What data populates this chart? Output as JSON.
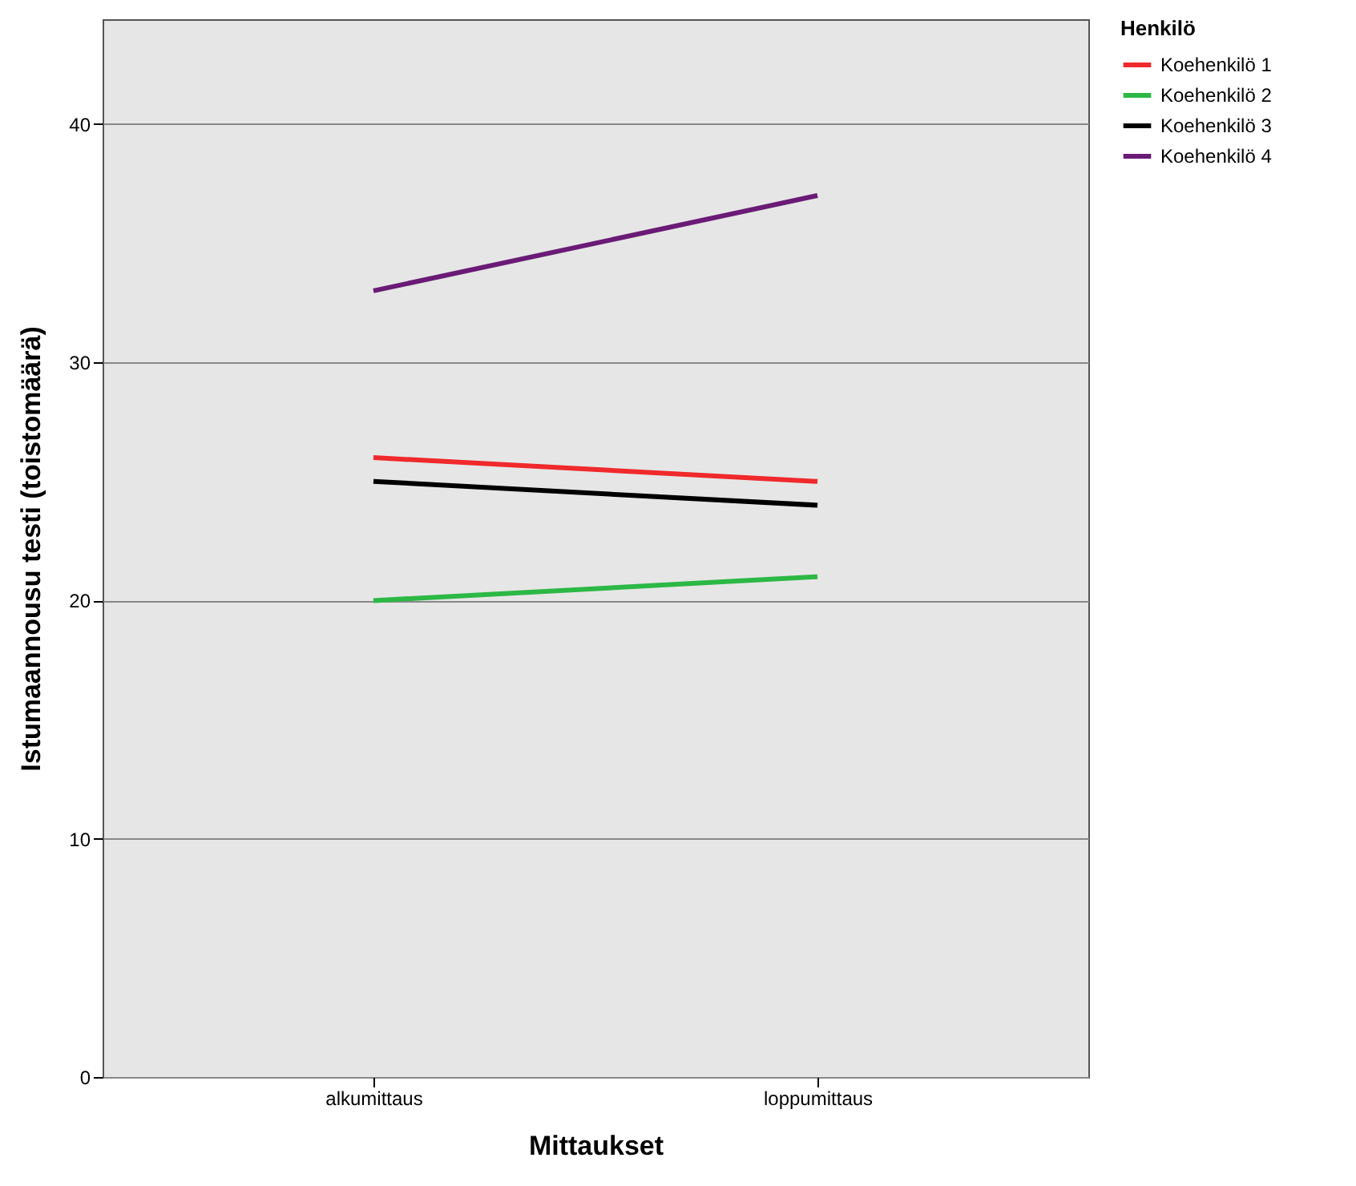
{
  "chart_data": {
    "type": "line",
    "xlabel": "Mittaukset",
    "ylabel": "Istumaannousu testi (toistomäärä)",
    "legend_title": "Henkilö",
    "categories": [
      "alkumittaus",
      "loppumittaus"
    ],
    "series": [
      {
        "name": "Koehenkilö 1",
        "color": "#f0292c",
        "values": [
          26,
          25
        ]
      },
      {
        "name": "Koehenkilö 2",
        "color": "#2cb845",
        "values": [
          20,
          21
        ]
      },
      {
        "name": "Koehenkilö 3",
        "color": "#000000",
        "values": [
          25,
          24
        ]
      },
      {
        "name": "Koehenkilö 4",
        "color": "#6a1b76",
        "values": [
          33,
          37
        ]
      }
    ],
    "ylim": [
      0,
      44.4
    ],
    "yticks": [
      0,
      10,
      20,
      30,
      40
    ],
    "grid": "y",
    "legend": "top right",
    "marker": "none",
    "line_style": "solid"
  }
}
